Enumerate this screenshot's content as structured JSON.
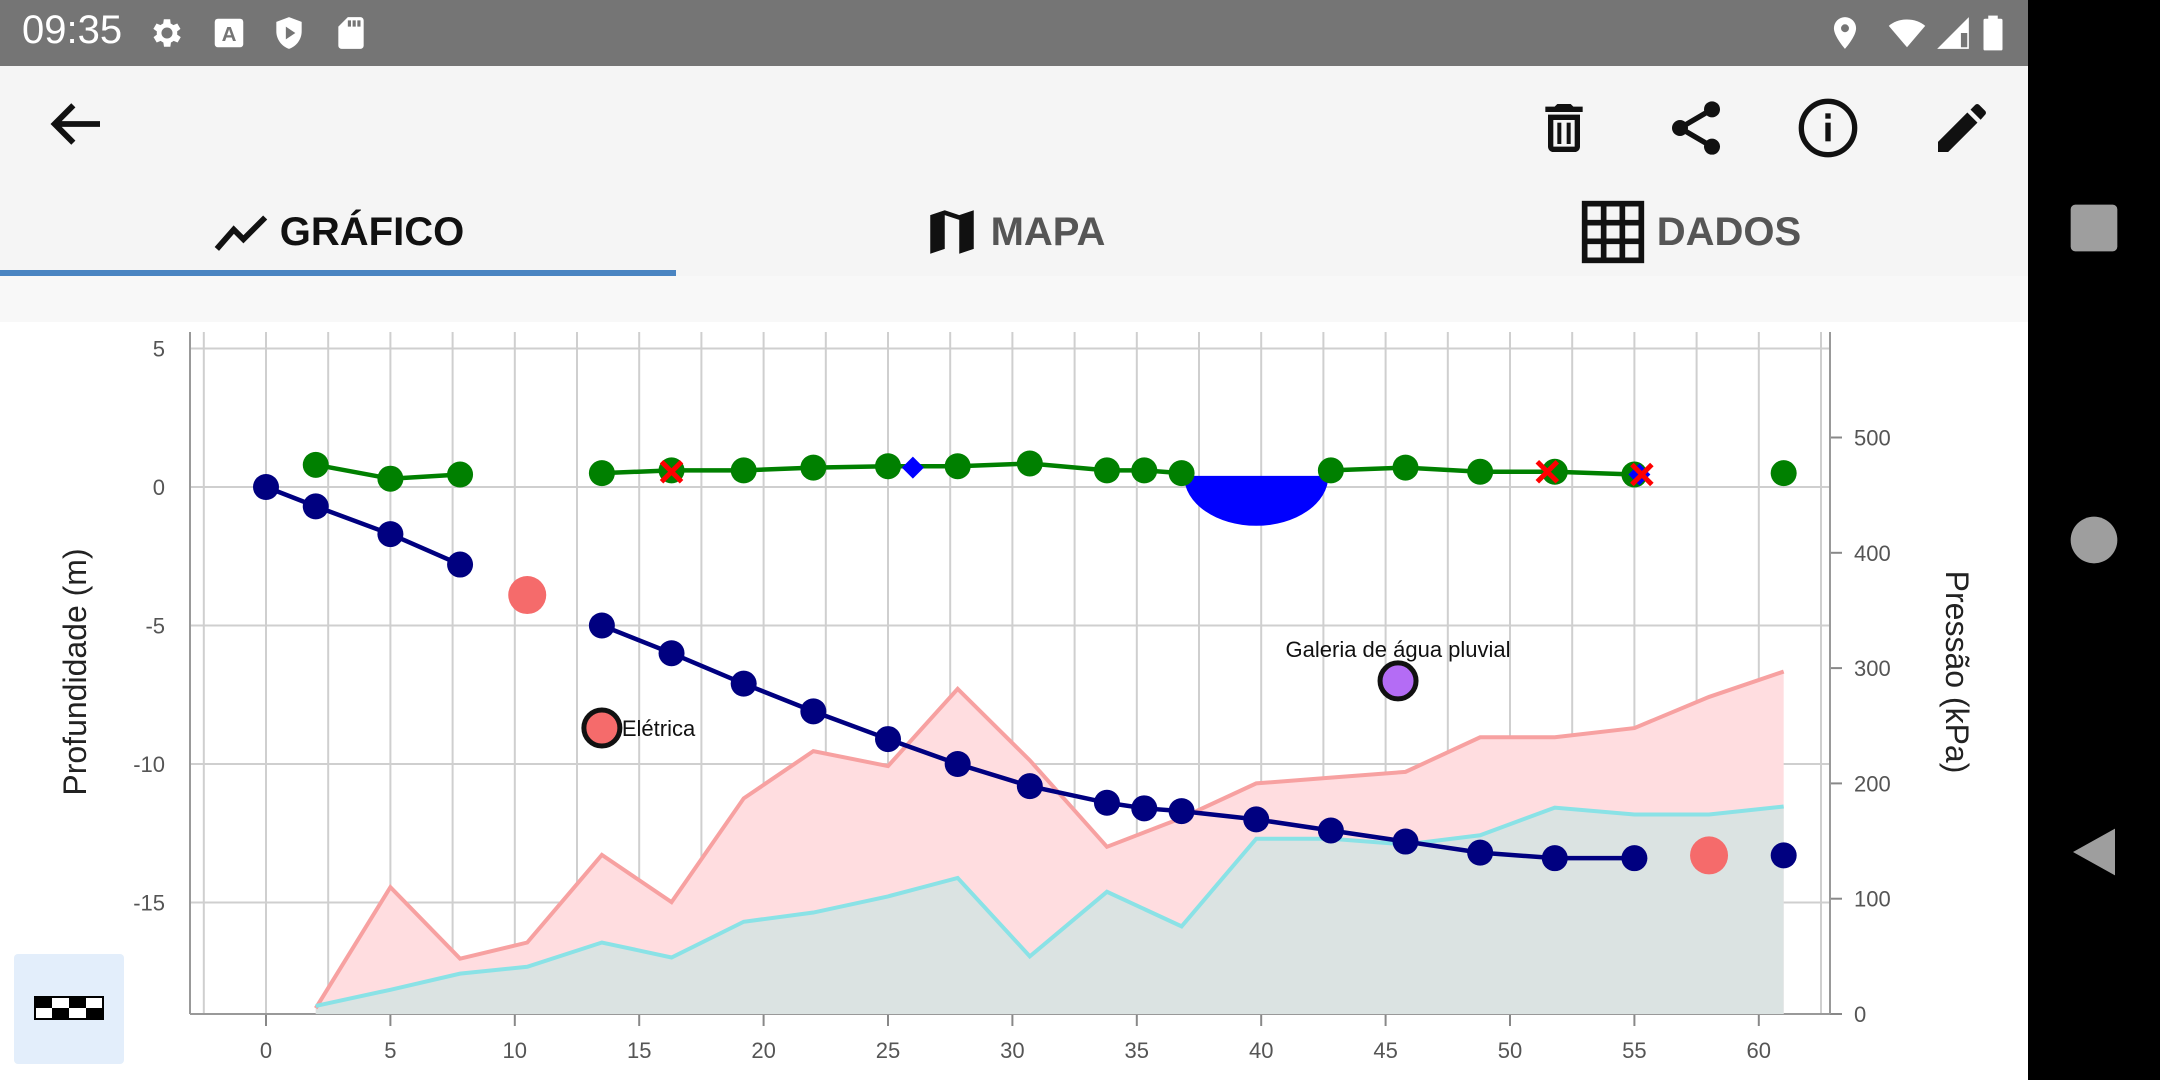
{
  "status_bar": {
    "time": "09:35",
    "left_icons": [
      "gear-icon",
      "font-a-icon",
      "shield-play-icon",
      "sd-card-icon"
    ],
    "right_icons": [
      "location-icon",
      "wifi-icon",
      "signal-icon",
      "battery-icon"
    ]
  },
  "toolbar": {
    "back_icon": "arrow-left-icon",
    "actions": [
      "trash-icon",
      "share-icon",
      "info-icon",
      "edit-pencil-icon"
    ]
  },
  "tabs": [
    {
      "label": "GRÁFICO",
      "icon": "line-chart-icon",
      "selected": true
    },
    {
      "label": "MAPA",
      "icon": "map-icon",
      "selected": false
    },
    {
      "label": "DADOS",
      "icon": "grid-table-icon",
      "selected": false
    }
  ],
  "colors": {
    "accent": "#4a85c2",
    "green_series": "#008000",
    "depth_series": "#000080",
    "pressure_fill": "#ffdde0",
    "pressure_line": "#f7a1a1",
    "cyan_fill": "#d9e3e1",
    "cyan_line": "#8ae2e6",
    "marker_salmon": "#f56b6b",
    "marker_purple": "#b46cf5",
    "water_blue": "#0000ff",
    "cross_red": "#ff0000"
  },
  "chart_data": {
    "type": "line",
    "ylabel": "Profundidade (m)",
    "y2label": "Pressão (kPa)",
    "xlim": [
      -3,
      63
    ],
    "ylim": [
      -19,
      5.5
    ],
    "y2lim": [
      0,
      580
    ],
    "xticks": [
      "0",
      "5",
      "10",
      "15",
      "20",
      "25",
      "30",
      "35",
      "40",
      "45",
      "50",
      "55",
      "60"
    ],
    "yticks": [
      "5",
      "0",
      "-5",
      "-10",
      "-15"
    ],
    "y2ticks": [
      "500",
      "400",
      "300",
      "200",
      "100",
      "0"
    ],
    "grid": true,
    "series": [
      {
        "kind": "line-markers",
        "x": [
          2,
          5,
          7.8
        ],
        "y": [
          0.8,
          0.3,
          0.45
        ]
      },
      {
        "kind": "line-markers",
        "x": [
          13.5,
          16.3,
          19.2,
          22,
          25,
          27.8,
          30.7,
          33.8,
          35.3,
          36.8
        ],
        "y": [
          0.5,
          0.6,
          0.6,
          0.7,
          0.75,
          0.75,
          0.85,
          0.6,
          0.6,
          0.5
        ]
      },
      {
        "kind": "line-markers",
        "x": [
          42.8,
          45.8,
          48.8,
          51.8,
          55
        ],
        "y": [
          0.6,
          0.7,
          0.55,
          0.55,
          0.45
        ]
      },
      {
        "kind": "markers",
        "x": [
          61
        ],
        "y": [
          0.5
        ]
      },
      {
        "kind": "line-markers-depth",
        "x": [
          0,
          2,
          5,
          7.8
        ],
        "y": [
          0,
          -0.7,
          -1.7,
          -2.8
        ]
      },
      {
        "kind": "line-markers-depth",
        "x": [
          13.5,
          16.3,
          19.2,
          22,
          25,
          27.8,
          30.7,
          33.8,
          35.3,
          36.8,
          39.8,
          42.8,
          45.8,
          48.8,
          51.8,
          55
        ],
        "y": [
          -5,
          -6,
          -7.1,
          -8.1,
          -9.1,
          -10,
          -10.8,
          -11.4,
          -11.6,
          -11.7,
          -12,
          -12.4,
          -12.8,
          -13.2,
          -13.4,
          -13.4
        ]
      },
      {
        "kind": "markers-depth",
        "x": [
          61
        ],
        "y": [
          -13.3
        ]
      },
      {
        "kind": "area",
        "axis": "y2",
        "x": [
          2,
          5,
          7.8,
          10.5,
          13.5,
          16.3,
          19.2,
          22,
          25,
          27.8,
          30.7,
          33.8,
          36.8,
          39.8,
          42.8,
          45.8,
          48.8,
          51.8,
          55,
          58,
          61
        ],
        "y": [
          5,
          110,
          48,
          62,
          138,
          97,
          187,
          228,
          215,
          282,
          220,
          145,
          170,
          200,
          205,
          210,
          240,
          240,
          248,
          275,
          297
        ]
      },
      {
        "kind": "area",
        "axis": "y2",
        "x": [
          2,
          5,
          7.8,
          10.5,
          13.5,
          16.3,
          19.2,
          22,
          25,
          27.8,
          30.7,
          33.8,
          36.8,
          39.8,
          42.8,
          45.8,
          48.8,
          51.8,
          55,
          58,
          61
        ],
        "y": [
          7,
          21,
          35,
          41,
          62,
          49,
          80,
          88,
          102,
          118,
          50,
          106,
          76,
          152,
          152,
          147,
          155,
          179,
          173,
          173,
          180
        ]
      }
    ],
    "annotations": [
      {
        "type": "circle",
        "x": 10.5,
        "y": -3.9
      },
      {
        "type": "circle-outlined",
        "x": 13.5,
        "y": -8.7,
        "label": "Elétrica"
      },
      {
        "type": "circle-outlined",
        "x": 45.5,
        "y": -7,
        "label": "Galeria de água pluvial"
      },
      {
        "type": "circle",
        "x": 58,
        "y": -13.3
      },
      {
        "type": "diamond",
        "x": 26,
        "y": 0.7
      },
      {
        "type": "diamond",
        "x": 55.2,
        "y": 0.45
      },
      {
        "type": "cross",
        "x": 16.3,
        "y": 0.55
      },
      {
        "type": "cross",
        "x": 51.5,
        "y": 0.55
      },
      {
        "type": "cross",
        "x": 55.3,
        "y": 0.45
      },
      {
        "type": "half-disc",
        "x": 39.8,
        "y": 0.4,
        "width": 5.8,
        "depth": 1.8
      }
    ]
  },
  "legend_button": {
    "icon": "scale-bar-icon"
  }
}
